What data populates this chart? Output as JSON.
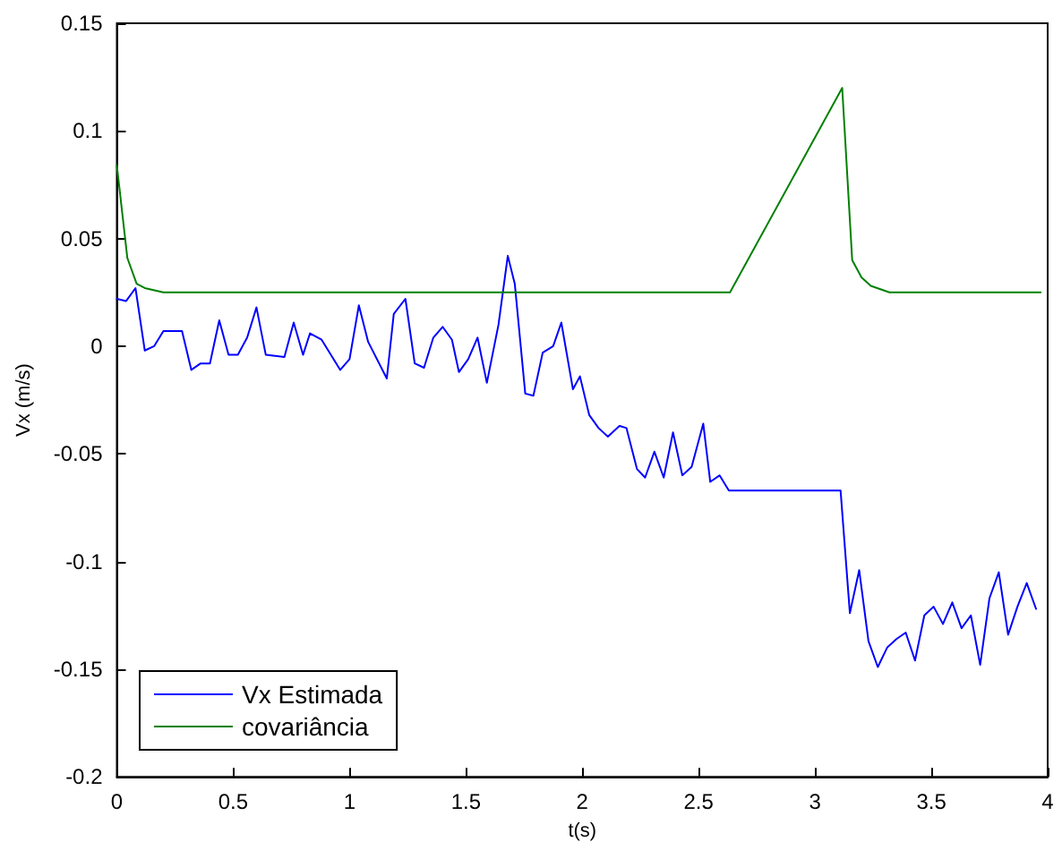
{
  "chart_data": {
    "type": "line",
    "xlabel": "t(s)",
    "ylabel": "Vx (m/s)",
    "xlim": [
      0,
      4
    ],
    "xticks": [
      0,
      0.5,
      1,
      1.5,
      2,
      2.5,
      3,
      3.5,
      4
    ],
    "ylim": [
      -0.2,
      0.15
    ],
    "yticks": [
      -0.2,
      -0.15,
      -0.1,
      -0.05,
      0,
      0.05,
      0.1,
      0.15
    ],
    "grid": false,
    "legend": "bottom left",
    "marker": "none",
    "line_style": "solid",
    "series": [
      {
        "name": "Vx Estimada",
        "color": "#0000ff",
        "x": [
          0,
          0.04,
          0.08,
          0.12,
          0.16,
          0.2,
          0.28,
          0.32,
          0.36,
          0.4,
          0.44,
          0.48,
          0.52,
          0.56,
          0.6,
          0.64,
          0.72,
          0.76,
          0.8,
          0.83,
          0.88,
          0.96,
          1.0,
          1.04,
          1.08,
          1.16,
          1.19,
          1.24,
          1.28,
          1.32,
          1.36,
          1.4,
          1.44,
          1.47,
          1.51,
          1.55,
          1.59,
          1.64,
          1.68,
          1.71,
          1.755,
          1.79,
          1.83,
          1.875,
          1.91,
          1.96,
          1.99,
          2.03,
          2.07,
          2.11,
          2.16,
          2.19,
          2.235,
          2.27,
          2.31,
          2.35,
          2.39,
          2.43,
          2.47,
          2.52,
          2.55,
          2.59,
          2.63,
          3.11,
          3.15,
          3.19,
          3.23,
          3.27,
          3.31,
          3.35,
          3.39,
          3.43,
          3.47,
          3.51,
          3.55,
          3.59,
          3.63,
          3.67,
          3.71,
          3.75,
          3.79,
          3.83,
          3.87,
          3.91,
          3.95
        ],
        "values": [
          0.022,
          0.021,
          0.027,
          -0.002,
          0,
          0.007,
          0.007,
          -0.011,
          -0.008,
          -0.008,
          0.012,
          -0.004,
          -0.004,
          0.004,
          0.018,
          -0.004,
          -0.005,
          0.011,
          -0.004,
          0.006,
          0.003,
          -0.011,
          -0.006,
          0.019,
          0.002,
          -0.015,
          0.015,
          0.022,
          -0.008,
          -0.01,
          0.004,
          0.009,
          0.003,
          -0.012,
          -0.006,
          0.004,
          -0.017,
          0.01,
          0.042,
          0.029,
          -0.022,
          -0.023,
          -0.003,
          0,
          0.011,
          -0.02,
          -0.014,
          -0.032,
          -0.038,
          -0.042,
          -0.037,
          -0.038,
          -0.057,
          -0.061,
          -0.049,
          -0.061,
          -0.04,
          -0.06,
          -0.056,
          -0.036,
          -0.063,
          -0.06,
          -0.067,
          -0.067,
          -0.124,
          -0.104,
          -0.137,
          -0.149,
          -0.14,
          -0.136,
          -0.133,
          -0.146,
          -0.125,
          -0.121,
          -0.129,
          -0.119,
          -0.131,
          -0.125,
          -0.148,
          -0.117,
          -0.105,
          -0.134,
          -0.121,
          -0.11,
          -0.122
        ]
      },
      {
        "name": "covariância",
        "color": "#008000",
        "x": [
          0,
          0.045,
          0.085,
          0.12,
          0.2,
          2.635,
          3.117,
          3.16,
          3.2,
          3.24,
          3.32,
          3.97
        ],
        "values": [
          0.084,
          0.041,
          0.029,
          0.027,
          0.025,
          0.025,
          0.12,
          0.04,
          0.032,
          0.028,
          0.025,
          0.025
        ]
      }
    ]
  }
}
